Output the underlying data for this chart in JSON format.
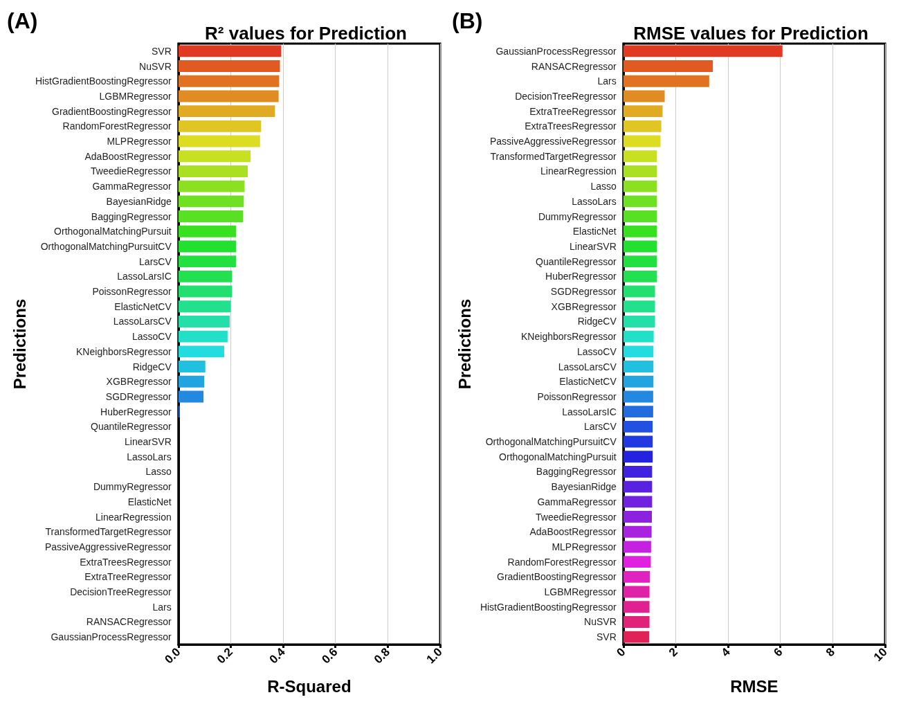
{
  "chart_data": [
    {
      "type": "bar",
      "orientation": "horizontal",
      "title": "R² values for Prediction",
      "xlabel": "R-Squared",
      "ylabel": "Predictions",
      "annotations": [
        "(A)"
      ],
      "grid": "x",
      "categories": [
        "SVR",
        "NuSVR",
        "HistGradientBoostingRegressor",
        "LGBMRegressor",
        "GradientBoostingRegressor",
        "RandomForestRegressor",
        "MLPRegressor",
        "AdaBoostRegressor",
        "TweedieRegressor",
        "GammaRegressor",
        "BayesianRidge",
        "BaggingRegressor",
        "OrthogonalMatchingPursuit",
        "OrthogonalMatchingPursuitCV",
        "LarsCV",
        "LassoLarsIC",
        "PoissonRegressor",
        "ElasticNetCV",
        "LassoLarsCV",
        "LassoCV",
        "KNeighborsRegressor",
        "RidgeCV",
        "XGBRegressor",
        "SGDRegressor",
        "HuberRegressor",
        "QuantileRegressor",
        "LinearSVR",
        "LassoLars",
        "Lasso",
        "DummyRegressor",
        "ElasticNet",
        "LinearRegression",
        "TransformedTargetRegressor",
        "PassiveAggressiveRegressor",
        "ExtraTreesRegressor",
        "ExtraTreeRegressor",
        "DecisionTreeRegressor",
        "Lars",
        "RANSACRegressor",
        "GaussianProcessRegressor"
      ],
      "values": [
        0.393,
        0.388,
        0.385,
        0.383,
        0.369,
        0.316,
        0.312,
        0.276,
        0.265,
        0.253,
        0.25,
        0.247,
        0.22,
        0.22,
        0.22,
        0.205,
        0.205,
        0.2,
        0.196,
        0.188,
        0.175,
        0.103,
        0.099,
        0.096,
        0.005,
        0,
        0,
        0,
        0,
        0,
        0,
        0,
        0,
        0,
        0,
        0,
        0,
        0,
        0,
        0
      ],
      "colors": [
        "#e03a22",
        "#e05a22",
        "#e07222",
        "#e08c22",
        "#e0aa22",
        "#e0c622",
        "#dcdc22",
        "#c8e022",
        "#aae022",
        "#8ce022",
        "#70e022",
        "#58e022",
        "#38e022",
        "#22e030",
        "#22e040",
        "#22e050",
        "#22e070",
        "#22e08c",
        "#22e0a8",
        "#22e0c8",
        "#22dce0",
        "#22c0e0",
        "#22a4e0",
        "#2288e0",
        "#226ce0",
        "#2250e0",
        "#2238e0",
        "#2222e0",
        "#4022e0",
        "#5822e0",
        "#7022e0",
        "#8c22e0",
        "#a822e0",
        "#c422e0",
        "#e022e0",
        "#e022c0",
        "#e022a8",
        "#e02290",
        "#e02278",
        "#e02258"
      ],
      "xlim": [
        0,
        1
      ],
      "xticks": [
        {
          "value": 0,
          "label": "0.0"
        },
        0.2,
        0.4,
        0.6,
        0.8,
        {
          "value": 1,
          "label": "1.0"
        }
      ]
    },
    {
      "type": "bar",
      "orientation": "horizontal",
      "title": "RMSE values for Prediction",
      "xlabel": "RMSE",
      "ylabel": "Predictions",
      "annotations": [
        "(B)"
      ],
      "grid": "x",
      "categories": [
        "GaussianProcessRegressor",
        "RANSACRegressor",
        "Lars",
        "DecisionTreeRegressor",
        "ExtraTreeRegressor",
        "ExtraTreesRegressor",
        "PassiveAggressiveRegressor",
        "TransformedTargetRegressor",
        "LinearRegression",
        "Lasso",
        "LassoLars",
        "DummyRegressor",
        "ElasticNet",
        "LinearSVR",
        "QuantileRegressor",
        "HuberRegressor",
        "SGDRegressor",
        "XGBRegressor",
        "RidgeCV",
        "KNeighborsRegressor",
        "LassoCV",
        "LassoLarsCV",
        "ElasticNetCV",
        "PoissonRegressor",
        "LassoLarsIC",
        "LarsCV",
        "OrthogonalMatchingPursuitCV",
        "OrthogonalMatchingPursuit",
        "BaggingRegressor",
        "BayesianRidge",
        "GammaRegressor",
        "TweedieRegressor",
        "AdaBoostRegressor",
        "MLPRegressor",
        "RandomForestRegressor",
        "GradientBoostingRegressor",
        "LGBMRegressor",
        "HistGradientBoostingRegressor",
        "NuSVR",
        "SVR"
      ],
      "values": [
        6.08,
        3.42,
        3.28,
        1.58,
        1.5,
        1.45,
        1.42,
        1.28,
        1.28,
        1.28,
        1.28,
        1.28,
        1.28,
        1.28,
        1.28,
        1.28,
        1.21,
        1.21,
        1.21,
        1.16,
        1.15,
        1.15,
        1.15,
        1.14,
        1.14,
        1.12,
        1.12,
        1.12,
        1.1,
        1.1,
        1.1,
        1.09,
        1.08,
        1.06,
        1.05,
        1.01,
        1.0,
        1.0,
        1.0,
        0.99
      ],
      "colors": [
        "#e03a22",
        "#e05a22",
        "#e07222",
        "#e08c22",
        "#e0aa22",
        "#e0c622",
        "#dcdc22",
        "#c8e022",
        "#aae022",
        "#8ce022",
        "#70e022",
        "#58e022",
        "#38e022",
        "#22e030",
        "#22e040",
        "#22e050",
        "#22e070",
        "#22e08c",
        "#22e0a8",
        "#22e0c8",
        "#22dce0",
        "#22c0e0",
        "#22a4e0",
        "#2288e0",
        "#226ce0",
        "#2250e0",
        "#2238e0",
        "#2222e0",
        "#4022e0",
        "#5822e0",
        "#7022e0",
        "#8c22e0",
        "#a822e0",
        "#c422e0",
        "#e022e0",
        "#e022c0",
        "#e022a8",
        "#e02290",
        "#e02278",
        "#e02258"
      ],
      "xlim": [
        0,
        10
      ],
      "xticks": [
        0,
        2,
        4,
        6,
        8,
        10
      ]
    }
  ]
}
